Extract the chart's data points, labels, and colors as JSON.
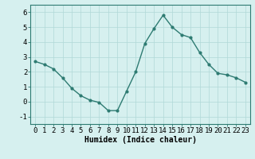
{
  "x": [
    0,
    1,
    2,
    3,
    4,
    5,
    6,
    7,
    8,
    9,
    10,
    11,
    12,
    13,
    14,
    15,
    16,
    17,
    18,
    19,
    20,
    21,
    22,
    23
  ],
  "y": [
    2.7,
    2.5,
    2.2,
    1.6,
    0.9,
    0.4,
    0.1,
    -0.05,
    -0.6,
    -0.6,
    0.7,
    2.0,
    3.9,
    4.9,
    5.8,
    5.0,
    4.5,
    4.3,
    3.3,
    2.5,
    1.9,
    1.8,
    1.6,
    1.3
  ],
  "line_color": "#2e7b72",
  "marker": "o",
  "marker_size": 2,
  "line_width": 1.0,
  "bg_color": "#d6f0ef",
  "grid_color": "#b0d8d8",
  "xlabel": "Humidex (Indice chaleur)",
  "xlabel_fontsize": 7,
  "xlabel_fontweight": "bold",
  "xtick_labels": [
    "0",
    "1",
    "2",
    "3",
    "4",
    "5",
    "6",
    "7",
    "8",
    "9",
    "10",
    "11",
    "12",
    "13",
    "14",
    "15",
    "16",
    "17",
    "18",
    "19",
    "20",
    "21",
    "22",
    "23"
  ],
  "ytick_values": [
    -1,
    0,
    1,
    2,
    3,
    4,
    5,
    6
  ],
  "xlim": [
    -0.5,
    23.5
  ],
  "ylim": [
    -1.5,
    6.5
  ],
  "tick_fontsize": 6.5
}
